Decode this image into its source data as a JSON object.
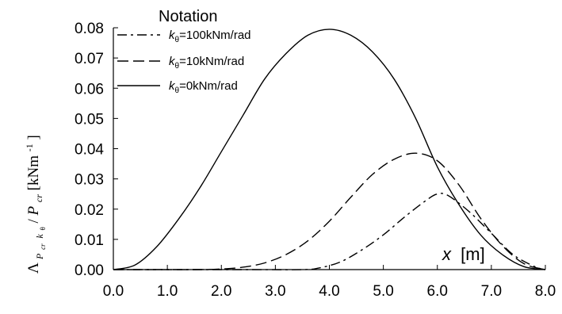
{
  "chart_data": {
    "type": "line",
    "xlim": [
      0.0,
      8.0
    ],
    "ylim": [
      0.0,
      0.08
    ],
    "xticks": [
      "0.0",
      "1.0",
      "2.0",
      "3.0",
      "4.0",
      "5.0",
      "6.0",
      "7.0",
      "8.0"
    ],
    "yticks": [
      "0.00",
      "0.01",
      "0.02",
      "0.03",
      "0.04",
      "0.05",
      "0.06",
      "0.07",
      "0.08"
    ],
    "xlabel": {
      "var": "x",
      "unit": "[m]"
    },
    "ylabel": {
      "lambda": "Λ",
      "sub_p": "P",
      "sub_cr": "cr",
      "sub_k": "k",
      "sub_theta": "θ",
      "slash": " / ",
      "p": "P",
      "cr": "cr",
      "unit_open": " [kNm",
      "unit_exp": "-1",
      "unit_close": "]"
    },
    "grid": false,
    "legend": {
      "title": "Notation",
      "placement": "top-left",
      "entries": [
        {
          "k": "k",
          "sub": "θ",
          "rest": "=100kNm/rad",
          "dash": "dashdot"
        },
        {
          "k": "k",
          "sub": "θ",
          "rest": "=10kNm/rad",
          "dash": "dashed"
        },
        {
          "k": "k",
          "sub": "θ",
          "rest": "=0kNm/rad",
          "dash": "solid"
        }
      ]
    },
    "series": [
      {
        "dash": "dashdot",
        "x": [
          0.0,
          2.5,
          3.5,
          3.8,
          4.2,
          4.6,
          5.0,
          5.4,
          5.8,
          6.0,
          6.2,
          6.6,
          7.0,
          7.4,
          7.8,
          8.0
        ],
        "y": [
          0.0,
          0.0,
          0.0,
          0.0005,
          0.0025,
          0.0065,
          0.0115,
          0.0175,
          0.023,
          0.025,
          0.0245,
          0.019,
          0.012,
          0.005,
          0.001,
          0.0
        ]
      },
      {
        "dash": "dashed",
        "x": [
          0.0,
          1.5,
          2.0,
          2.4,
          2.8,
          3.2,
          3.6,
          4.0,
          4.4,
          4.8,
          5.2,
          5.6,
          6.0,
          6.4,
          6.8,
          7.2,
          7.6,
          8.0
        ],
        "y": [
          0.0,
          0.0,
          0.0002,
          0.0008,
          0.0022,
          0.005,
          0.0095,
          0.016,
          0.024,
          0.0315,
          0.0365,
          0.0385,
          0.036,
          0.028,
          0.017,
          0.008,
          0.002,
          0.0
        ]
      },
      {
        "dash": "solid",
        "x": [
          0.0,
          0.4,
          0.8,
          1.2,
          1.6,
          2.0,
          2.4,
          2.8,
          3.2,
          3.6,
          4.0,
          4.4,
          4.8,
          5.2,
          5.6,
          6.0,
          6.4,
          6.8,
          7.2,
          7.6,
          8.0
        ],
        "y": [
          0.0,
          0.0015,
          0.0075,
          0.0165,
          0.027,
          0.039,
          0.051,
          0.063,
          0.0715,
          0.0775,
          0.0795,
          0.0775,
          0.072,
          0.063,
          0.05,
          0.034,
          0.0215,
          0.0115,
          0.005,
          0.001,
          0.0
        ]
      }
    ]
  }
}
